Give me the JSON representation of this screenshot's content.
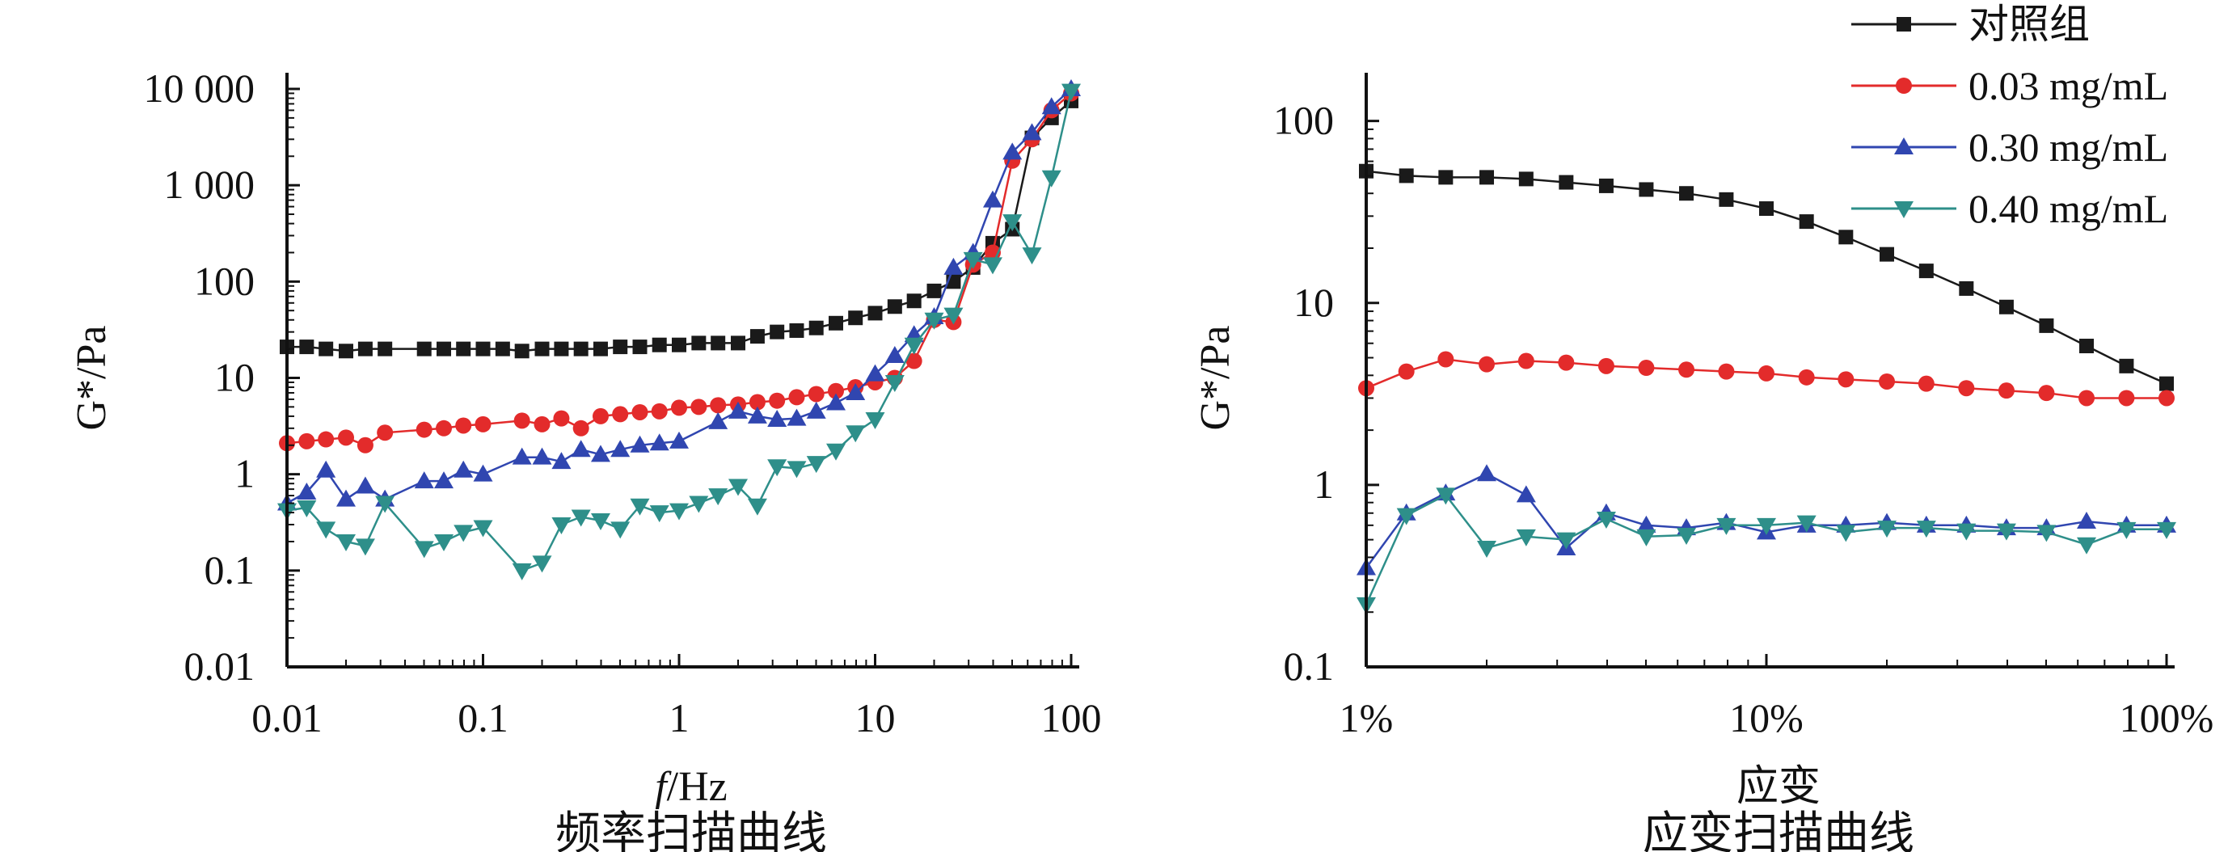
{
  "legend": [
    {
      "name": "对照组",
      "color": "#1a1a1a",
      "marker": "square"
    },
    {
      "name": "0.03 mg/mL",
      "color": "#e32b2b",
      "marker": "circle"
    },
    {
      "name": "0.30 mg/mL",
      "color": "#3046b0",
      "marker": "triangle-up"
    },
    {
      "name": "0.40 mg/mL",
      "color": "#2e8f8a",
      "marker": "triangle-down"
    }
  ],
  "chart_data": [
    {
      "type": "line",
      "title": "频率扫描曲线",
      "xlabel_italic": "f",
      "xlabel_rest": "/Hz",
      "ylabel": "G*/Pa",
      "xscale": "log",
      "yscale": "log",
      "xlim": [
        0.01,
        100
      ],
      "ylim": [
        0.01,
        10000
      ],
      "xticks": [
        0.01,
        0.1,
        1,
        10,
        100
      ],
      "xtick_labels": [
        "0.01",
        "0.1",
        "1",
        "10",
        "100"
      ],
      "yticks": [
        0.01,
        0.1,
        1,
        10,
        100,
        1000,
        10000
      ],
      "ytick_labels": [
        "0.01",
        "0.1",
        "1",
        "10",
        "100",
        "1 000",
        "10 000"
      ],
      "grid": false,
      "series": [
        {
          "name": "对照组",
          "x": [
            0.01,
            0.0126,
            0.0158,
            0.02,
            0.0251,
            0.0316,
            0.0501,
            0.0631,
            0.0794,
            0.1,
            0.126,
            0.158,
            0.2,
            0.251,
            0.316,
            0.398,
            0.501,
            0.631,
            0.794,
            1,
            1.26,
            1.58,
            2,
            2.51,
            3.16,
            3.98,
            5.01,
            6.31,
            7.94,
            10,
            12.6,
            15.8,
            20,
            25.1,
            31.6,
            39.8,
            50.1,
            63.1,
            79.4,
            100
          ],
          "y": [
            21,
            21,
            20,
            19,
            20,
            20,
            20,
            20,
            20,
            20,
            20,
            19,
            20,
            20,
            20,
            20,
            21,
            21,
            22,
            22,
            23,
            23,
            23,
            27,
            30,
            31,
            33,
            37,
            42,
            47,
            55,
            63,
            80,
            100,
            140,
            250,
            350,
            3100,
            5000,
            7500
          ]
        },
        {
          "name": "0.03 mg/mL",
          "x": [
            0.01,
            0.0126,
            0.0158,
            0.02,
            0.0251,
            0.0316,
            0.0501,
            0.0631,
            0.0794,
            0.1,
            0.158,
            0.2,
            0.251,
            0.316,
            0.398,
            0.501,
            0.631,
            0.794,
            1,
            1.26,
            1.58,
            2,
            2.51,
            3.16,
            3.98,
            5.01,
            6.31,
            7.94,
            10,
            12.6,
            15.8,
            20,
            25.1,
            31.6,
            39.8,
            50.1,
            63.1,
            79.4,
            100
          ],
          "y": [
            2.1,
            2.2,
            2.3,
            2.4,
            2.0,
            2.7,
            2.9,
            3.0,
            3.2,
            3.3,
            3.6,
            3.3,
            3.8,
            3.0,
            4.0,
            4.2,
            4.4,
            4.5,
            4.9,
            5.0,
            5.2,
            5.3,
            5.6,
            5.8,
            6.3,
            6.8,
            7.3,
            8.0,
            9.0,
            10,
            15,
            40,
            38,
            150,
            200,
            1800,
            3000,
            6000,
            9000
          ]
        },
        {
          "name": "0.30 mg/mL",
          "x": [
            0.01,
            0.0126,
            0.0158,
            0.02,
            0.0251,
            0.0316,
            0.0501,
            0.0631,
            0.0794,
            0.1,
            0.158,
            0.2,
            0.251,
            0.316,
            0.398,
            0.501,
            0.631,
            0.794,
            1,
            1.58,
            2,
            2.51,
            3.16,
            3.98,
            5.01,
            6.31,
            7.94,
            10,
            12.6,
            15.8,
            20,
            25.1,
            31.6,
            39.8,
            50.1,
            63.1,
            79.4,
            100
          ],
          "y": [
            0.5,
            0.65,
            1.1,
            0.55,
            0.75,
            0.55,
            0.85,
            0.85,
            1.1,
            1.0,
            1.5,
            1.5,
            1.35,
            1.8,
            1.6,
            1.8,
            2.0,
            2.1,
            2.2,
            3.5,
            4.5,
            4.0,
            3.7,
            3.8,
            4.5,
            5.5,
            7.0,
            11,
            17,
            28,
            43,
            140,
            200,
            700,
            2200,
            3500,
            6500,
            10000
          ]
        },
        {
          "name": "0.40 mg/mL",
          "x": [
            0.01,
            0.0126,
            0.0158,
            0.02,
            0.0251,
            0.0316,
            0.0501,
            0.0631,
            0.0794,
            0.1,
            0.158,
            0.2,
            0.251,
            0.316,
            0.398,
            0.501,
            0.631,
            0.794,
            1,
            1.26,
            1.58,
            2,
            2.51,
            3.16,
            3.98,
            5.01,
            6.31,
            7.94,
            10,
            12.6,
            15.8,
            20,
            25.1,
            31.6,
            39.8,
            50.1,
            63.1,
            79.4,
            100
          ],
          "y": [
            0.42,
            0.45,
            0.27,
            0.2,
            0.18,
            0.5,
            0.17,
            0.2,
            0.25,
            0.28,
            0.1,
            0.12,
            0.3,
            0.36,
            0.33,
            0.27,
            0.47,
            0.4,
            0.42,
            0.5,
            0.6,
            0.75,
            0.47,
            1.2,
            1.15,
            1.3,
            1.75,
            2.7,
            3.7,
            9,
            22,
            40,
            45,
            170,
            150,
            420,
            190,
            1200,
            9500
          ]
        }
      ]
    },
    {
      "type": "line",
      "title": "应变扫描曲线",
      "xlabel": "应变",
      "ylabel": "G*/Pa",
      "xscale": "log",
      "yscale": "log",
      "xlim": [
        1,
        100
      ],
      "ylim": [
        0.1,
        150
      ],
      "xticks": [
        1,
        10,
        100
      ],
      "xtick_labels": [
        "1%",
        "10%",
        "100%"
      ],
      "yticks": [
        0.1,
        1,
        10,
        100
      ],
      "ytick_labels": [
        "0.1",
        "1",
        "10",
        "100"
      ],
      "grid": false,
      "series": [
        {
          "name": "对照组",
          "x": [
            1,
            1.26,
            1.58,
            2,
            2.51,
            3.16,
            3.98,
            5.01,
            6.31,
            7.94,
            10,
            12.6,
            15.8,
            20,
            25.1,
            31.6,
            39.8,
            50.1,
            63.1,
            79.4,
            100
          ],
          "y": [
            53,
            50,
            49,
            49,
            48,
            46,
            44,
            42,
            40,
            37,
            33,
            28,
            23,
            18.5,
            15,
            12,
            9.5,
            7.5,
            5.8,
            4.5,
            3.6
          ]
        },
        {
          "name": "0.03 mg/mL",
          "x": [
            1,
            1.26,
            1.58,
            2,
            2.51,
            3.16,
            3.98,
            5.01,
            6.31,
            7.94,
            10,
            12.6,
            15.8,
            20,
            25.1,
            31.6,
            39.8,
            50.1,
            63.1,
            79.4,
            100
          ],
          "y": [
            3.4,
            4.2,
            4.9,
            4.6,
            4.8,
            4.7,
            4.5,
            4.4,
            4.3,
            4.2,
            4.1,
            3.9,
            3.8,
            3.7,
            3.6,
            3.4,
            3.3,
            3.2,
            3.0,
            3.0,
            3.0
          ]
        },
        {
          "name": "0.30 mg/mL",
          "x": [
            1,
            1.26,
            1.58,
            2,
            2.51,
            3.16,
            3.98,
            5.01,
            6.31,
            7.94,
            10,
            12.6,
            15.8,
            20,
            25.1,
            31.6,
            39.8,
            50.1,
            63.1,
            79.4,
            100
          ],
          "y": [
            0.35,
            0.7,
            0.9,
            1.15,
            0.88,
            0.45,
            0.7,
            0.6,
            0.58,
            0.62,
            0.55,
            0.6,
            0.6,
            0.62,
            0.6,
            0.6,
            0.58,
            0.58,
            0.63,
            0.6,
            0.6
          ]
        },
        {
          "name": "0.40 mg/mL",
          "x": [
            1,
            1.26,
            1.58,
            2,
            2.51,
            3.16,
            3.98,
            5.01,
            6.31,
            7.94,
            10,
            12.6,
            15.8,
            20,
            25.1,
            31.6,
            39.8,
            50.1,
            63.1,
            79.4,
            100
          ],
          "y": [
            0.22,
            0.68,
            0.88,
            0.45,
            0.52,
            0.5,
            0.65,
            0.52,
            0.53,
            0.6,
            0.6,
            0.62,
            0.55,
            0.58,
            0.58,
            0.56,
            0.56,
            0.55,
            0.47,
            0.57,
            0.57
          ]
        }
      ]
    }
  ]
}
